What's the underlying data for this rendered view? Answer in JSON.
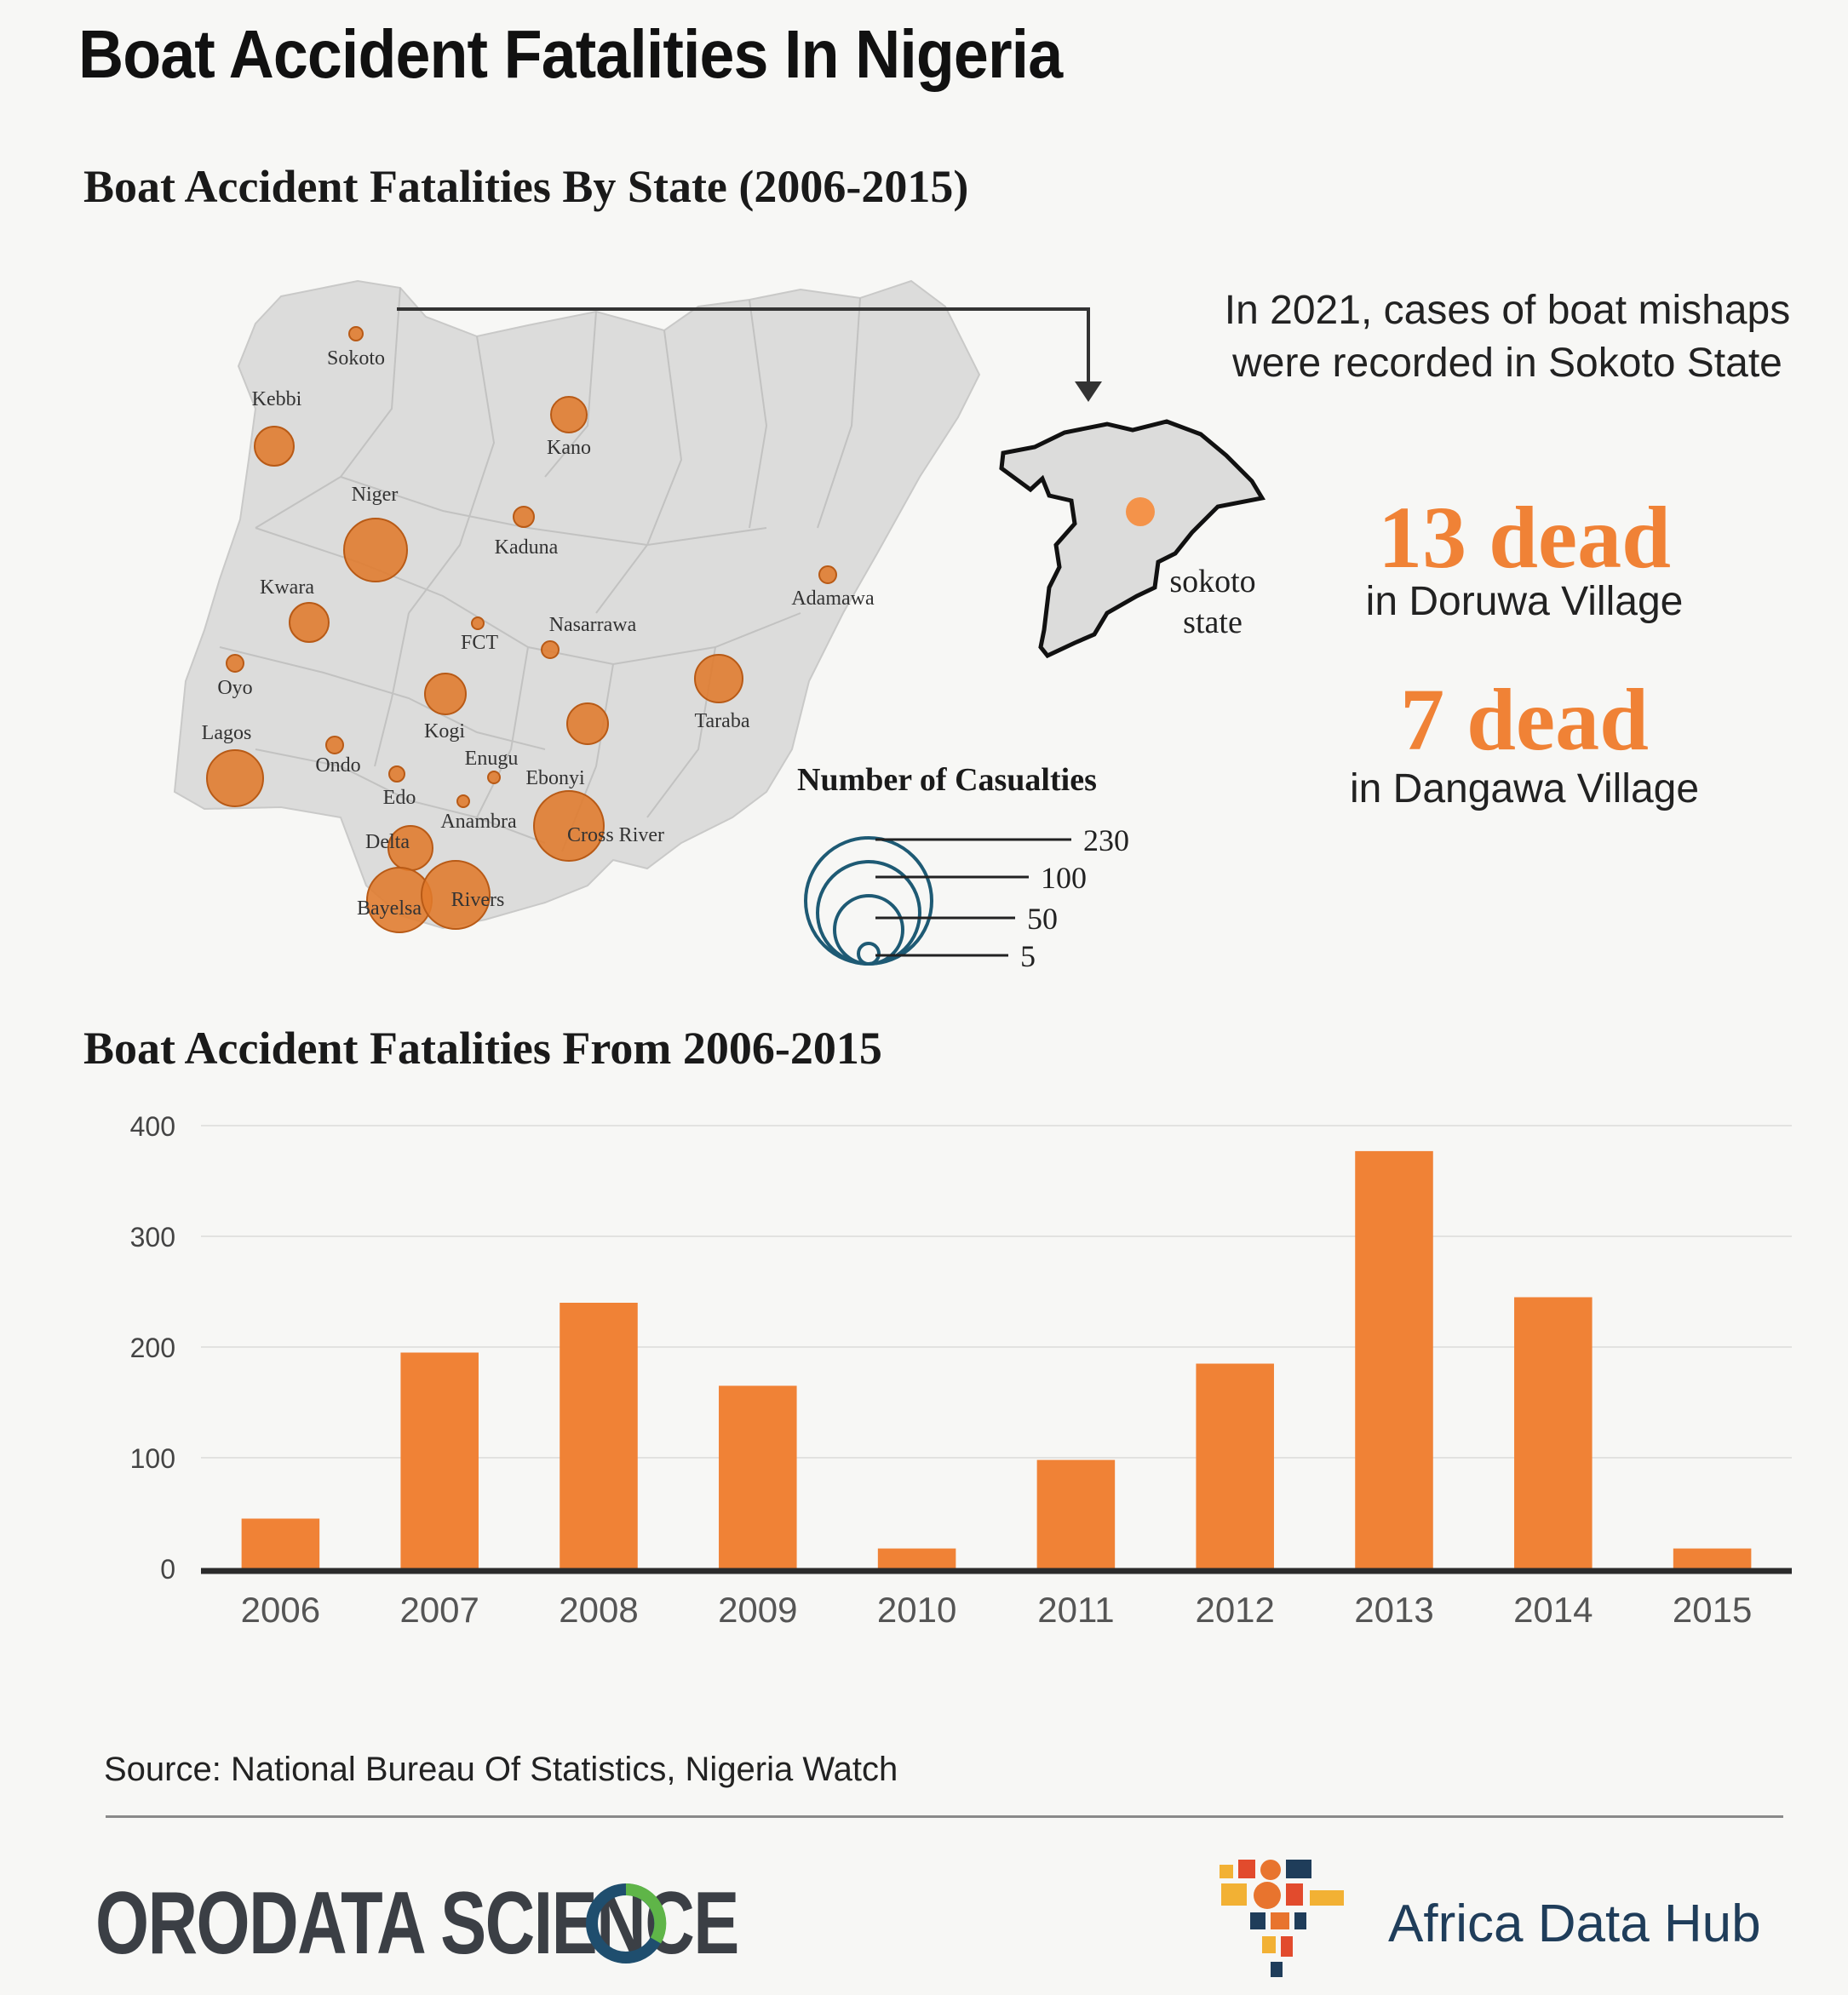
{
  "title": "Boat Accident Fatalities In Nigeria",
  "map_section": {
    "title": "Boat Accident Fatalities By State (2006-2015)",
    "legend_title": "Number of Casualties",
    "legend_values": [
      230,
      100,
      50,
      5
    ],
    "inset_label_line1": "sokoto",
    "inset_label_line2": "state",
    "bubble_color": "#e07a2b",
    "states": [
      {
        "name": "Sokoto"
      },
      {
        "name": "Kebbi"
      },
      {
        "name": "Kano"
      },
      {
        "name": "Niger"
      },
      {
        "name": "Kaduna"
      },
      {
        "name": "Kwara"
      },
      {
        "name": "Adamawa"
      },
      {
        "name": "FCT"
      },
      {
        "name": "Nasarrawa"
      },
      {
        "name": "Oyo"
      },
      {
        "name": "Kogi"
      },
      {
        "name": "Taraba"
      },
      {
        "name": "Lagos"
      },
      {
        "name": "Ondo"
      },
      {
        "name": "Enugu"
      },
      {
        "name": "Ebonyi"
      },
      {
        "name": "Edo"
      },
      {
        "name": "Anambra"
      },
      {
        "name": "Cross River"
      },
      {
        "name": "Delta"
      },
      {
        "name": "Bayelsa"
      },
      {
        "name": "Rivers"
      }
    ]
  },
  "info": {
    "intro": "In 2021, cases of boat mishaps were recorded in Sokoto State",
    "stat1_big": "13 dead",
    "stat1_sub": "in Doruwa Village",
    "stat2_big": "7 dead",
    "stat2_sub": "in Dangawa Village",
    "accent_color": "#f08236"
  },
  "chart_data": {
    "type": "bar",
    "title": "Boat Accident Fatalities From 2006-2015",
    "categories": [
      "2006",
      "2007",
      "2008",
      "2009",
      "2010",
      "2011",
      "2012",
      "2013",
      "2014",
      "2015"
    ],
    "values": [
      45,
      195,
      240,
      165,
      18,
      98,
      185,
      377,
      245,
      18
    ],
    "yticks": [
      "0",
      "100",
      "200",
      "300",
      "400"
    ],
    "ylim": [
      0,
      400
    ],
    "xlabel": "",
    "ylabel": "",
    "bar_color": "#f08236",
    "grid": true
  },
  "source": "Source: National Bureau Of Statistics, Nigeria Watch",
  "footer": {
    "left_brand": "ORODATA SCIENCE",
    "right_brand": "Africa Data Hub"
  }
}
